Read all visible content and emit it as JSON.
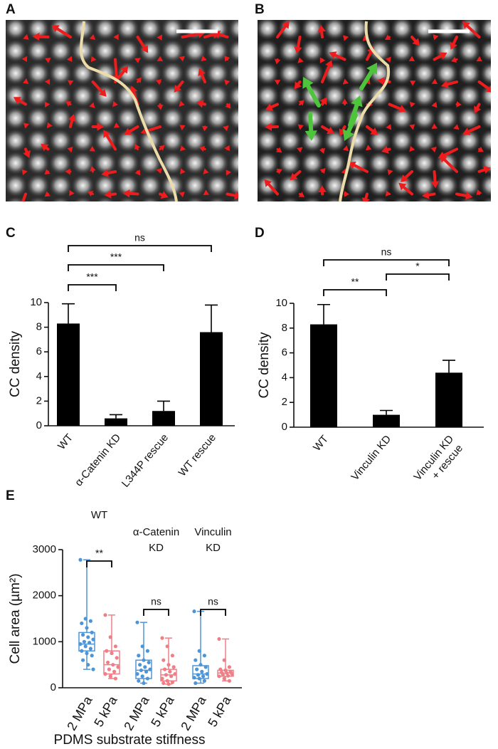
{
  "images": [
    {
      "label": "A"
    },
    {
      "label": "B"
    }
  ],
  "chart_data": [
    {
      "type": "bar",
      "label": "C",
      "ylabel": "CC density",
      "categories": [
        "WT",
        "α-Catenin KD",
        "L344P rescue",
        "WT rescue"
      ],
      "values": [
        8.3,
        0.6,
        1.2,
        7.6
      ],
      "errors": [
        1.6,
        0.3,
        0.8,
        2.2
      ],
      "color": "#000000",
      "ylim": [
        0,
        10
      ],
      "yticks": [
        0,
        2,
        4,
        6,
        8,
        10
      ],
      "comparisons": [
        {
          "between": [
            0,
            1
          ],
          "label": "***"
        },
        {
          "between": [
            0,
            2
          ],
          "label": "***"
        },
        {
          "between": [
            0,
            3
          ],
          "label": "ns"
        }
      ]
    },
    {
      "type": "bar",
      "label": "D",
      "ylabel": "CC density",
      "categories": [
        [
          "WT"
        ],
        [
          "Vinculin KD"
        ],
        [
          "Vinculin KD",
          "+ rescue"
        ]
      ],
      "values": [
        8.3,
        1.0,
        4.4
      ],
      "errors": [
        1.6,
        0.35,
        1.0
      ],
      "color": "#000000",
      "ylim": [
        0,
        10
      ],
      "yticks": [
        0,
        2,
        4,
        6,
        8,
        10
      ],
      "comparisons": [
        {
          "between": [
            0,
            1
          ],
          "label": "**"
        },
        {
          "between": [
            1,
            2
          ],
          "label": "*"
        },
        {
          "between": [
            0,
            2
          ],
          "label": "ns"
        }
      ]
    },
    {
      "type": "box",
      "label": "E",
      "ylabel": "Cell area (µm²)",
      "xlabel": "PDMS substrate stiffness",
      "groups": [
        [
          "WT"
        ],
        [
          "α-Catenin",
          "KD"
        ],
        [
          "Vinculin",
          "KD"
        ]
      ],
      "categories": [
        "2 MPa",
        "5 kPa",
        "2 MPa",
        "5 kPa",
        "2 MPa",
        "5 kPa"
      ],
      "colors": [
        "#4f95d6",
        "#ef7f86",
        "#4f95d6",
        "#ef7f86",
        "#4f95d6",
        "#ef7f86"
      ],
      "ylim": [
        0,
        3000
      ],
      "yticks": [
        0,
        1000,
        2000,
        3000
      ],
      "boxes": [
        {
          "min": 400,
          "q1": 800,
          "median": 950,
          "q3": 1200,
          "max": 2780,
          "points": [
            2780,
            1500,
            1450,
            1400,
            1300,
            1200,
            1150,
            1100,
            1050,
            1000,
            980,
            950,
            900,
            850,
            800,
            750,
            700,
            600,
            500,
            400
          ]
        },
        {
          "min": 200,
          "q1": 300,
          "median": 500,
          "q3": 800,
          "max": 1580,
          "points": [
            1580,
            1100,
            900,
            800,
            750,
            650,
            550,
            500,
            450,
            400,
            350,
            300,
            250,
            200
          ]
        },
        {
          "min": 100,
          "q1": 200,
          "median": 380,
          "q3": 600,
          "max": 1420,
          "points": [
            1420,
            900,
            800,
            700,
            600,
            550,
            500,
            450,
            400,
            380,
            350,
            300,
            250,
            200,
            150,
            100
          ]
        },
        {
          "min": 80,
          "q1": 150,
          "median": 280,
          "q3": 400,
          "max": 1080,
          "points": [
            1080,
            900,
            700,
            600,
            500,
            450,
            400,
            350,
            300,
            280,
            250,
            200,
            150,
            120,
            100,
            80
          ]
        },
        {
          "min": 100,
          "q1": 200,
          "median": 300,
          "q3": 480,
          "max": 1660,
          "points": [
            1660,
            800,
            700,
            600,
            500,
            450,
            400,
            350,
            300,
            280,
            250,
            220,
            200,
            150,
            100
          ]
        },
        {
          "min": 150,
          "q1": 250,
          "median": 320,
          "q3": 380,
          "max": 1060,
          "points": [
            1060,
            600,
            450,
            400,
            380,
            350,
            330,
            320,
            300,
            280,
            260,
            250,
            200,
            150
          ]
        }
      ],
      "comparisons": [
        {
          "between": [
            0,
            1
          ],
          "label": "**"
        },
        {
          "between": [
            2,
            3
          ],
          "label": "ns"
        },
        {
          "between": [
            4,
            5
          ],
          "label": "ns"
        }
      ]
    }
  ]
}
